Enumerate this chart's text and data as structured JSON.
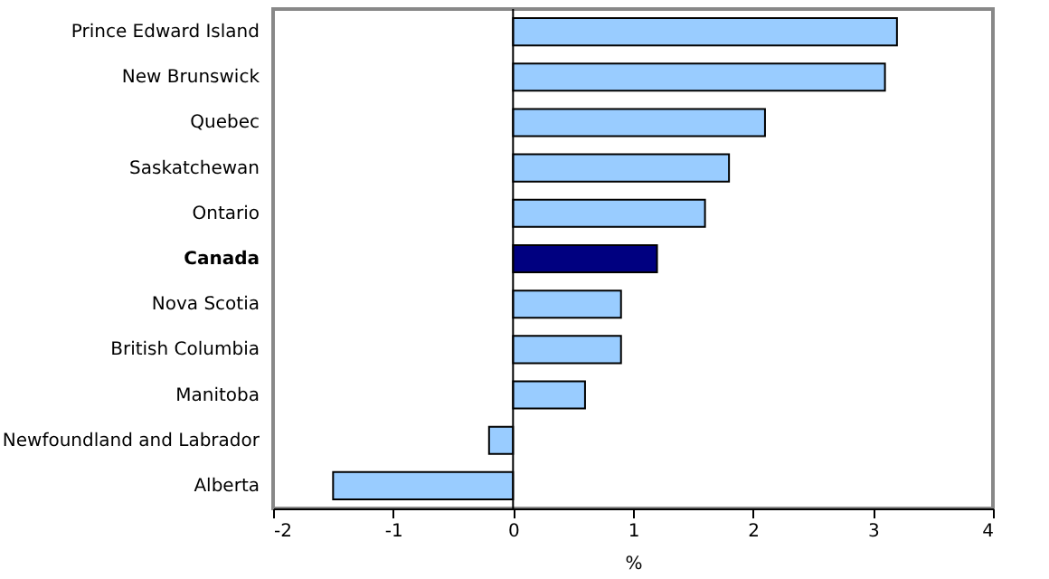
{
  "chart_data": {
    "type": "bar",
    "orientation": "horizontal",
    "xlabel": "%",
    "categories": [
      "Prince Edward Island",
      "New Brunswick",
      "Quebec",
      "Saskatchewan",
      "Ontario",
      "Canada",
      "Nova Scotia",
      "British Columbia",
      "Manitoba",
      "Newfoundland and Labrador",
      "Alberta"
    ],
    "values": [
      3.2,
      3.1,
      2.1,
      1.8,
      1.6,
      1.2,
      0.9,
      0.9,
      0.6,
      -0.2,
      -1.5
    ],
    "colors": [
      "#99ccff",
      "#99ccff",
      "#99ccff",
      "#99ccff",
      "#99ccff",
      "#000080",
      "#99ccff",
      "#99ccff",
      "#99ccff",
      "#99ccff",
      "#99ccff"
    ],
    "xlim": [
      -2,
      4
    ],
    "xticks": [
      -2,
      -1,
      0,
      1,
      2,
      3,
      4
    ],
    "ref_lines": [
      {
        "axis": "x",
        "value": 0,
        "color": "#000000"
      }
    ],
    "grid": false
  }
}
